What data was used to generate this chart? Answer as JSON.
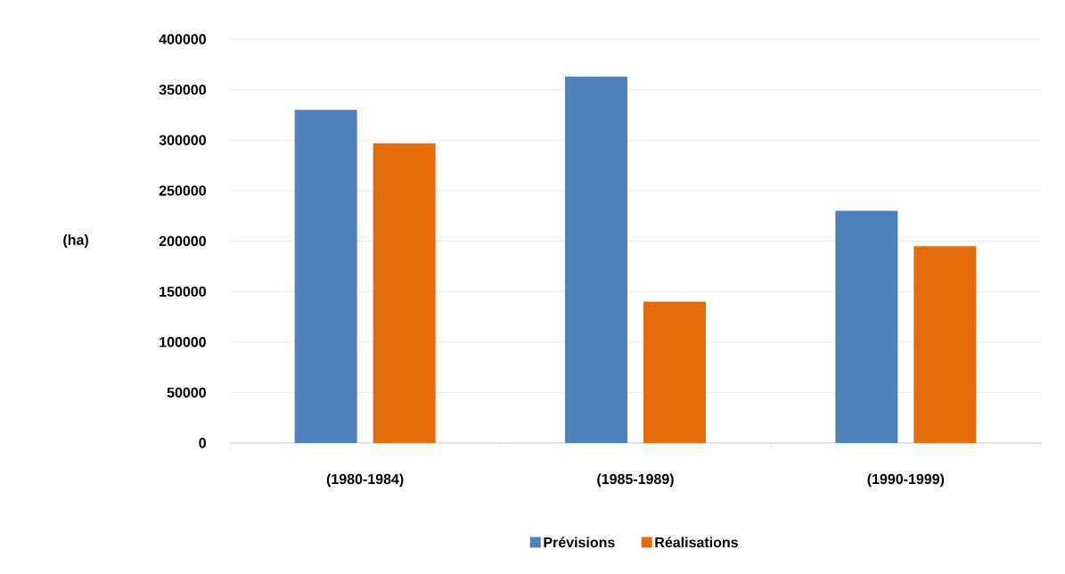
{
  "chart_data": {
    "type": "bar",
    "ylabel": "(ha)",
    "categories": [
      "(1980-1984)",
      "(1985-1989)",
      "(1990-1999)"
    ],
    "series": [
      {
        "name": "Prévisions",
        "color": "#4f81bd",
        "values": [
          330000,
          363000,
          230000
        ]
      },
      {
        "name": "Réalisations",
        "color": "#e46c0a",
        "values": [
          297000,
          140000,
          195000
        ]
      }
    ],
    "ylim": [
      0,
      400000
    ],
    "yticks": [
      0,
      50000,
      100000,
      150000,
      200000,
      250000,
      300000,
      350000,
      400000
    ],
    "grid": "y",
    "legend": "bottom"
  }
}
